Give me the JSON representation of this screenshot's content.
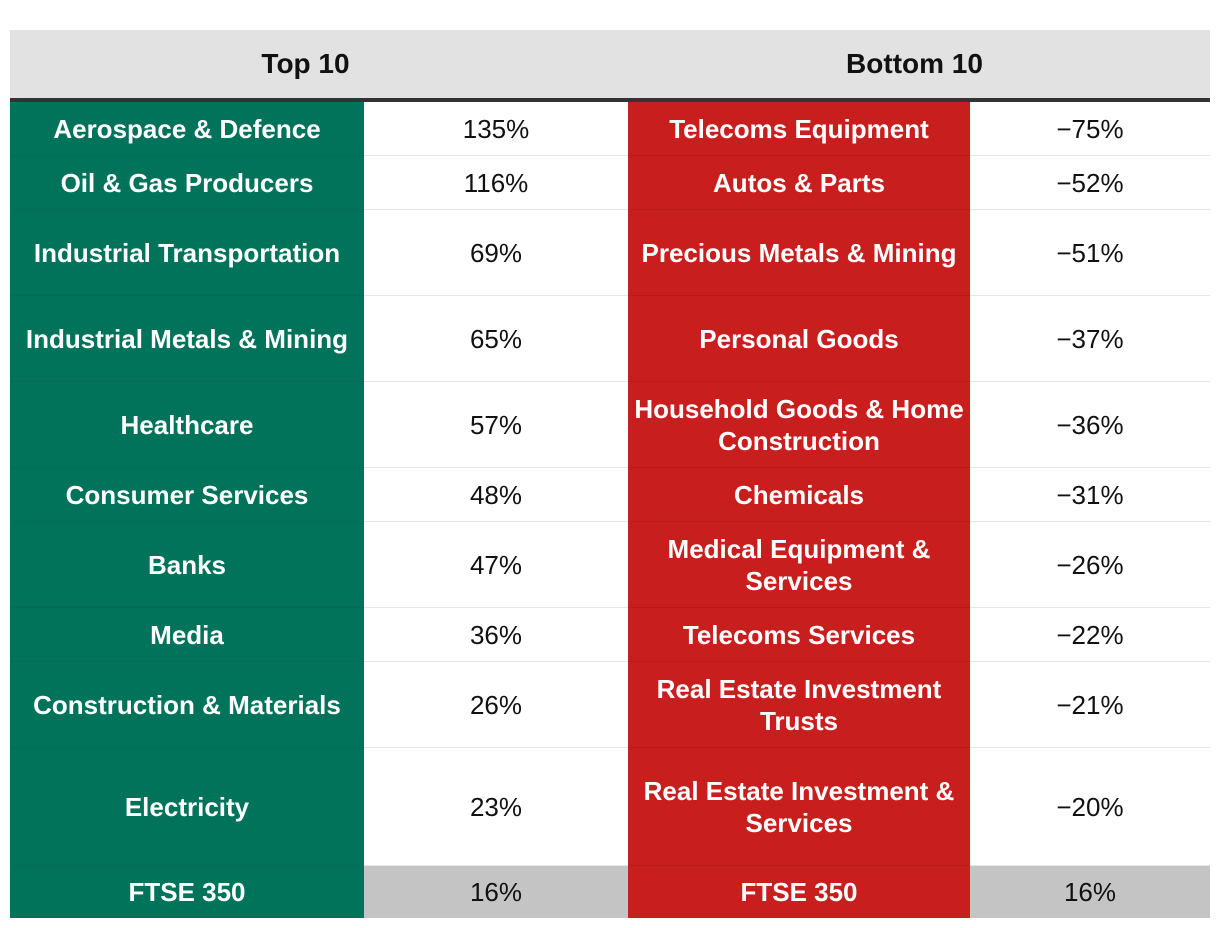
{
  "chart_data": {
    "type": "table",
    "headers": {
      "top": "Top 10",
      "bottom": "Bottom 10"
    },
    "top": [
      {
        "sector": "Aerospace & Defence",
        "value": "135%"
      },
      {
        "sector": "Oil & Gas Producers",
        "value": "116%"
      },
      {
        "sector": "Industrial Transportation",
        "value": "69%"
      },
      {
        "sector": "Industrial Metals & Mining",
        "value": "65%"
      },
      {
        "sector": "Healthcare",
        "value": "57%"
      },
      {
        "sector": "Consumer Services",
        "value": "48%"
      },
      {
        "sector": "Banks",
        "value": "47%"
      },
      {
        "sector": "Media",
        "value": "36%"
      },
      {
        "sector": "Construction & Materials",
        "value": "26%"
      },
      {
        "sector": "Electricity",
        "value": "23%"
      }
    ],
    "bottom": [
      {
        "sector": "Telecoms Equipment",
        "value": "−75%"
      },
      {
        "sector": "Autos & Parts",
        "value": "−52%"
      },
      {
        "sector": "Precious Metals & Mining",
        "value": "−51%"
      },
      {
        "sector": "Personal Goods",
        "value": "−37%"
      },
      {
        "sector": "Household Goods & Home Construction",
        "value": "−36%"
      },
      {
        "sector": "Chemicals",
        "value": "−31%"
      },
      {
        "sector": "Medical Equipment & Services",
        "value": "−26%"
      },
      {
        "sector": "Telecoms Services",
        "value": "−22%"
      },
      {
        "sector": "Real Estate Investment Trusts",
        "value": "−21%"
      },
      {
        "sector": "Real Estate Investment & Services",
        "value": "−20%"
      }
    ],
    "benchmark": {
      "top": {
        "sector": "FTSE 350",
        "value": "16%"
      },
      "bottom": {
        "sector": "FTSE 350",
        "value": "16%"
      }
    }
  },
  "colors": {
    "top_accent": "#00735a",
    "bottom_accent": "#c81e1e",
    "header_bg": "#e2e2e2",
    "benchmark_value_bg": "#c4c4c4"
  }
}
